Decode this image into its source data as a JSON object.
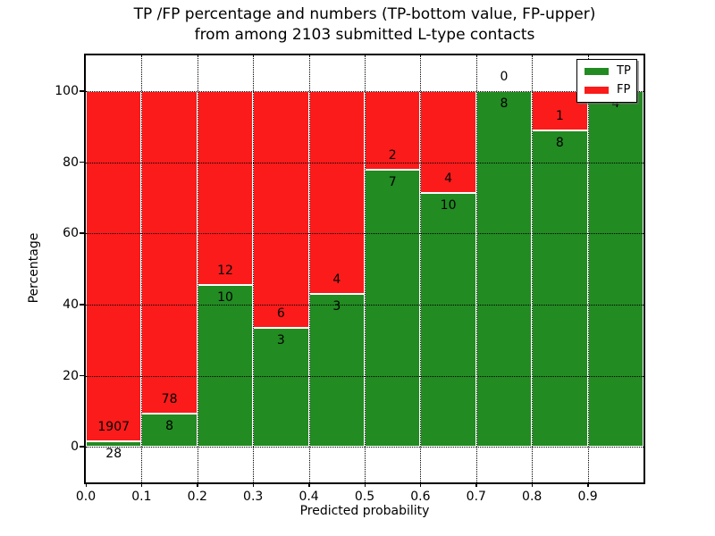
{
  "figure": {
    "title_line1": "TP /FP percentage and numbers (TP-bottom value, FP-upper)",
    "title_line2": "from among 2103 submitted L-type contacts",
    "background_color": "#ffffff"
  },
  "chart_data": {
    "type": "bar",
    "stacked": true,
    "title": "TP /FP percentage and numbers (TP-bottom value, FP-upper) from among 2103 submitted L-type contacts",
    "xlabel": "Predicted probability",
    "ylabel": "Percentage",
    "total_contacts": 2103,
    "bin_width": 0.1,
    "categories": [
      "0.0-0.1",
      "0.1-0.2",
      "0.2-0.3",
      "0.3-0.4",
      "0.4-0.5",
      "0.5-0.6",
      "0.6-0.7",
      "0.7-0.8",
      "0.8-0.9",
      "0.9-1.0"
    ],
    "series": [
      {
        "name": "TP",
        "color": "#228b22",
        "counts": [
          28,
          8,
          10,
          3,
          3,
          7,
          10,
          8,
          8,
          4
        ],
        "percent": [
          1.447,
          9.302,
          45.455,
          33.333,
          42.857,
          77.778,
          71.429,
          100.0,
          88.889,
          100.0
        ]
      },
      {
        "name": "FP",
        "color": "#fb1b1b",
        "counts": [
          1907,
          78,
          12,
          6,
          4,
          2,
          4,
          0,
          1,
          0
        ],
        "percent": [
          98.553,
          90.698,
          54.545,
          66.667,
          57.143,
          22.222,
          28.571,
          0.0,
          11.111,
          0.0
        ]
      }
    ],
    "bar_edge_color": "#ffffff",
    "grid": "dotted",
    "xlim": [
      0.0,
      1.0
    ],
    "ylim": [
      -10,
      110
    ],
    "x_tick_labels": [
      "0.0",
      "0.1",
      "0.2",
      "0.3",
      "0.4",
      "0.5",
      "0.6",
      "0.7",
      "0.8",
      "0.9"
    ],
    "y_tick_values": [
      0,
      20,
      40,
      60,
      80,
      100
    ],
    "legend": {
      "position": "upper right",
      "entries": [
        "TP",
        "FP"
      ]
    }
  }
}
